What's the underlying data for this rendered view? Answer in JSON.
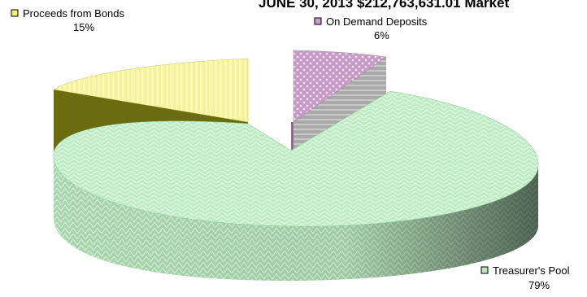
{
  "chart_data": {
    "type": "pie",
    "style": "3d-exploded",
    "title": "JUNE 30, 2013  $212,763,631.01 Market",
    "slices": [
      {
        "label": "Treasurer's Pool",
        "percent_label": "79%",
        "value": 79,
        "color": "#b9e8bf"
      },
      {
        "label": "Proceeds from Bonds",
        "percent_label": "15%",
        "value": 15,
        "color": "#f5f07a"
      },
      {
        "label": "On Demand Deposits",
        "percent_label": "6%",
        "value": 6,
        "color": "#c89cc8"
      }
    ],
    "legend": "inline labels next to each slice"
  }
}
